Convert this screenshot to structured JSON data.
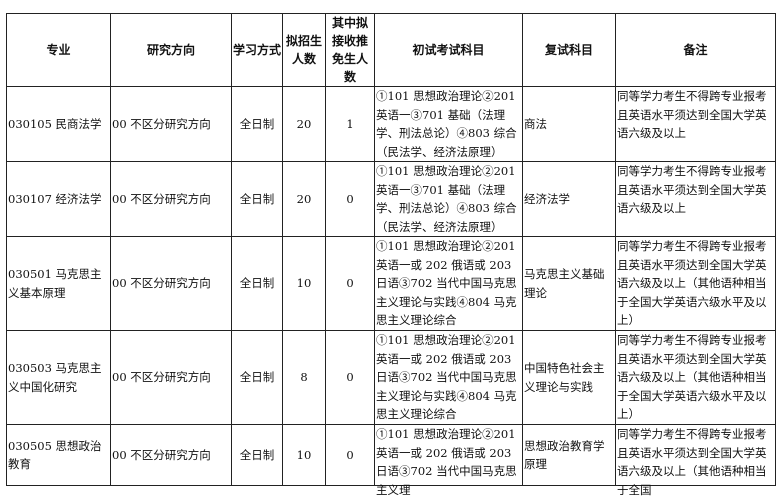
{
  "headers": [
    "专业",
    "研究方向",
    "学习方式",
    "拟招生人数",
    "其中拟接收推免生人数",
    "初试考试科目",
    "复试科目",
    "备注"
  ],
  "rows": [
    {
      "major": "030105 民商法学",
      "direction": "00 不区分研究方向",
      "mode": "全日制",
      "quota": "20",
      "exempt": "1",
      "exam": "①101 思想政治理论②201 英语一③701 基础（法理学、刑法总论）④803 综合（民法学、经济法原理）",
      "retest": "商法",
      "note": "同等学力考生不得跨专业报考且英语水平须达到全国大学英语六级及以上"
    },
    {
      "major": "030107 经济法学",
      "direction": "00 不区分研究方向",
      "mode": "全日制",
      "quota": "20",
      "exempt": "0",
      "exam": "①101 思想政治理论②201 英语一③701 基础（法理学、刑法总论）④803 综合（民法学、经济法原理）",
      "retest": "经济法学",
      "note": "同等学力考生不得跨专业报考且英语水平须达到全国大学英语六级及以上"
    },
    {
      "major": "030501 马克思主义基本原理",
      "direction": "00 不区分研究方向",
      "mode": "全日制",
      "quota": "10",
      "exempt": "0",
      "exam": "①101 思想政治理论②201 英语一或 202 俄语或 203 日语③702 当代中国马克思主义理论与实践④804 马克思主义理论综合",
      "retest": "马克思主义基础理论",
      "note": "同等学力考生不得跨专业报考且英语水平须达到全国大学英语六级及以上（其他语种相当于全国大学英语六级水平及以上）"
    },
    {
      "major": "030503 马克思主义中国化研究",
      "direction": "00 不区分研究方向",
      "mode": "全日制",
      "quota": "8",
      "exempt": "0",
      "exam": "①101 思想政治理论②201 英语一或 202 俄语或 203 日语③702 当代中国马克思主义理论与实践④804 马克思主义理论综合",
      "retest": "中国特色社会主义理论与实践",
      "note": "同等学力考生不得跨专业报考且英语水平须达到全国大学英语六级及以上（其他语种相当于全国大学英语六级水平及以上）"
    },
    {
      "major": "030505 思想政治教育",
      "direction": "00 不区分研究方向",
      "mode": "全日制",
      "quota": "10",
      "exempt": "0",
      "exam": "①101 思想政治理论②201 英语一或 202 俄语或 203 日语③702 当代中国马克思主义理",
      "retest": "思想政治教育学原理",
      "note": "同等学力考生不得跨专业报考且英语水平须达到全国大学英语六级及以上（其他语种相当于全国"
    }
  ]
}
